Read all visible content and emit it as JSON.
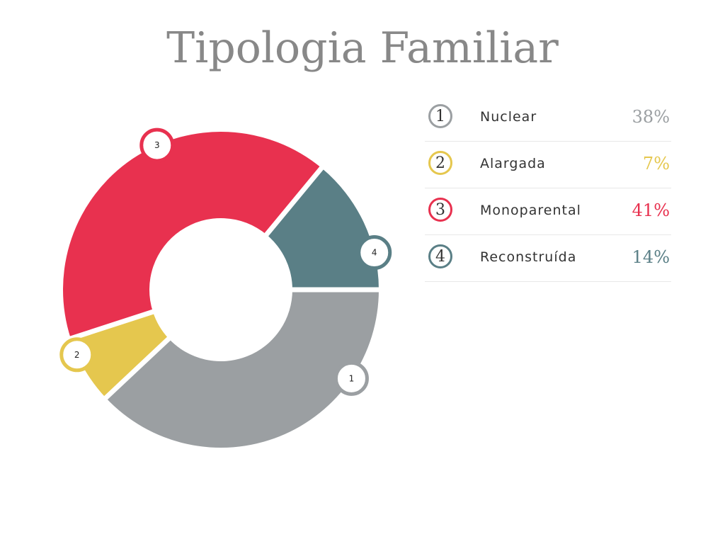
{
  "title": "Tipologia Familiar",
  "chart_data": {
    "type": "pie",
    "title": "Tipologia Familiar",
    "categories": [
      "Nuclear",
      "Alargada",
      "Monoparental",
      "Reconstruída"
    ],
    "values": [
      38,
      7,
      41,
      14
    ],
    "unit": "%",
    "markers": [
      "1",
      "2",
      "3",
      "4"
    ],
    "value_labels": [
      "38%",
      "7%",
      "41%",
      "14%"
    ],
    "colors": [
      "#9b9fa2",
      "#e5c74e",
      "#e8314f",
      "#5a7f86"
    ],
    "legend_position": "right"
  }
}
